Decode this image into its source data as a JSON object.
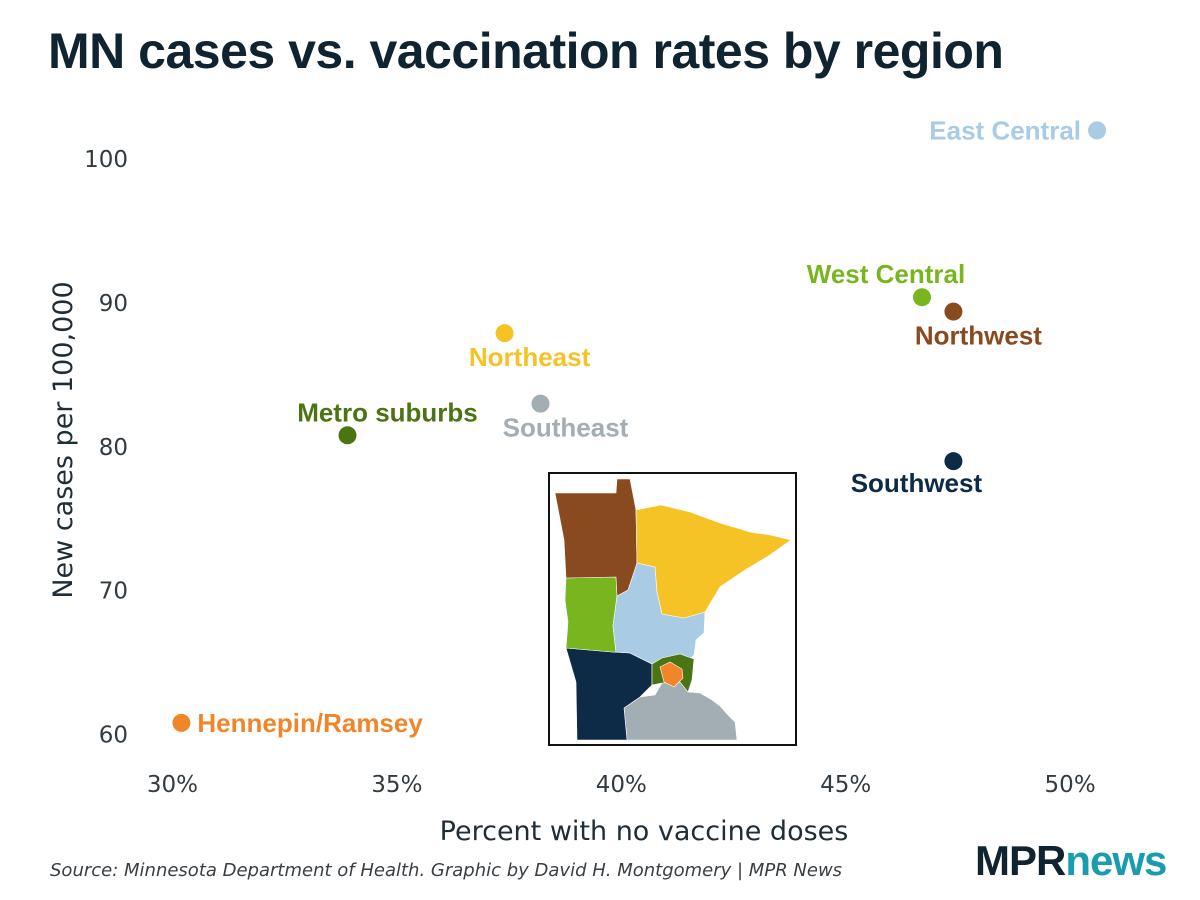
{
  "chart_data": {
    "type": "scatter",
    "title": "MN cases vs. vaccination rates by region",
    "xlabel": "Percent with no vaccine doses",
    "ylabel": "New cases per 100,000",
    "xlim": [
      29.5,
      51
    ],
    "ylim": [
      58.5,
      103
    ],
    "xticks": [
      30,
      35,
      40,
      45,
      50
    ],
    "xtick_labels": [
      "30%",
      "35%",
      "40%",
      "45%",
      "50%"
    ],
    "yticks": [
      60,
      70,
      80,
      90,
      100
    ],
    "ytick_labels": [
      "60",
      "70",
      "80",
      "90",
      "100"
    ],
    "grid": false,
    "points": [
      {
        "name": "East Central",
        "x": 50.6,
        "y": 102,
        "color": "#a9cbe3",
        "label_pos": "left"
      },
      {
        "name": "West Central",
        "x": 46.7,
        "y": 90.4,
        "color": "#78b51f",
        "label_pos": "top-left"
      },
      {
        "name": "Northwest",
        "x": 47.4,
        "y": 89.4,
        "color": "#8a4a1f",
        "label_pos": "bottom"
      },
      {
        "name": "Northeast",
        "x": 37.4,
        "y": 87.9,
        "color": "#f5c326",
        "label_pos": "bottom"
      },
      {
        "name": "Southeast",
        "x": 38.2,
        "y": 83,
        "color": "#a3adb4",
        "label_pos": "bottom"
      },
      {
        "name": "Metro suburbs",
        "x": 33.9,
        "y": 80.8,
        "color": "#4b7413",
        "label_pos": "top-right"
      },
      {
        "name": "Southwest",
        "x": 47.4,
        "y": 79,
        "color": "#0d2b47",
        "label_pos": "bottom-left"
      },
      {
        "name": "Hennepin/Ramsey",
        "x": 30.2,
        "y": 60.8,
        "color": "#f0862a",
        "label_pos": "right"
      }
    ]
  },
  "inset_map": {
    "regions": [
      {
        "name": "Northwest",
        "color": "#8a4a1f"
      },
      {
        "name": "Northeast",
        "color": "#f5c326"
      },
      {
        "name": "West Central",
        "color": "#78b51f"
      },
      {
        "name": "East Central",
        "color": "#a9cbe3"
      },
      {
        "name": "Metro suburbs",
        "color": "#4b7413"
      },
      {
        "name": "Hennepin/Ramsey",
        "color": "#f0862a"
      },
      {
        "name": "Southwest",
        "color": "#0d2b47"
      },
      {
        "name": "Southeast",
        "color": "#a3adb4"
      }
    ]
  },
  "source": "Source: Minnesota Department of Health. Graphic by David H. Montgomery | MPR News",
  "logo": {
    "part1": "MPR",
    "part2": "news"
  }
}
